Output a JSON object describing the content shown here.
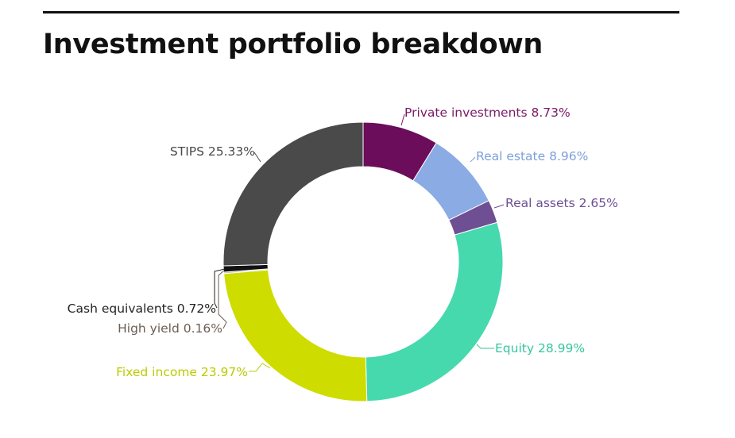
{
  "chart_data": {
    "type": "pie",
    "variant": "donut",
    "title": "Investment portfolio breakdown",
    "start_angle_deg": 0,
    "direction": "clockwise",
    "slices": [
      {
        "label": "Private investments",
        "value": 8.73,
        "display": "8.73%",
        "color": "#6b0d5a",
        "label_color": "#7a1a66",
        "label_side": "right"
      },
      {
        "label": "Real estate",
        "value": 8.96,
        "display": "8.96%",
        "color": "#8aabe3",
        "label_color": "#7d9fdc",
        "label_side": "right"
      },
      {
        "label": "Real assets",
        "value": 2.65,
        "display": "2.65%",
        "color": "#6e4f94",
        "label_color": "#6e4f94",
        "label_side": "right"
      },
      {
        "label": "Equity",
        "value": 28.99,
        "display": "28.99%",
        "color": "#46d9ad",
        "label_color": "#35c79c",
        "label_side": "right"
      },
      {
        "label": "Fixed income",
        "value": 23.97,
        "display": "23.97%",
        "color": "#cedc00",
        "label_color": "#bccb00",
        "label_side": "left"
      },
      {
        "label": "High yield",
        "value": 0.16,
        "display": "0.16%",
        "color": "#b8aaa0",
        "label_color": "#6b5e55",
        "label_side": "left"
      },
      {
        "label": "Cash equivalents",
        "value": 0.72,
        "display": "0.72%",
        "color": "#111111",
        "label_color": "#222222",
        "label_side": "left"
      },
      {
        "label": "STIPS",
        "value": 25.33,
        "display": "25.33%",
        "color": "#4a4a4a",
        "label_color": "#4a4a4a",
        "label_side": "left"
      }
    ]
  }
}
